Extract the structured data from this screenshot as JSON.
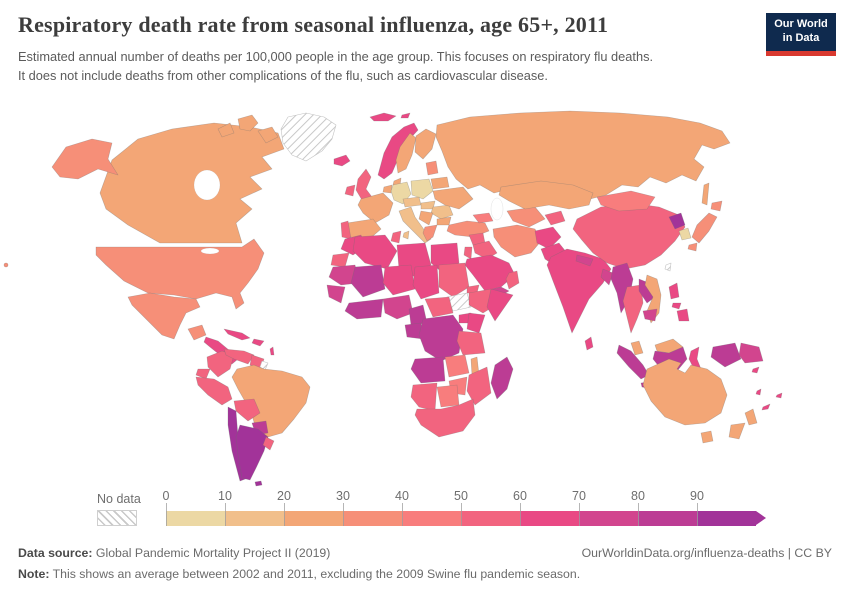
{
  "header": {
    "title": "Respiratory death rate from seasonal influenza, age 65+, 2011",
    "subtitle_line1": "Estimated annual number of deaths per 100,000 people in the age group. This focuses on respiratory flu deaths.",
    "subtitle_line2": "It does not include deaths from other complications of the flu, such as cardiovascular disease.",
    "logo": {
      "line1": "Our World",
      "line2": "in Data",
      "bg": "#0f2a4e",
      "stripe": "#d9392f"
    }
  },
  "legend": {
    "no_data_label": "No data",
    "ticks": [
      "0",
      "10",
      "20",
      "30",
      "40",
      "50",
      "60",
      "70",
      "80",
      "90"
    ]
  },
  "map": {
    "bin_colors": [
      "#ecd8a4",
      "#f1bf8b",
      "#f3a676",
      "#f68f78",
      "#f87d7d",
      "#f2647f",
      "#e94984",
      "#d2458e",
      "#bc3c94",
      "#a23399"
    ],
    "region_bins": {
      "greenland": "nodata",
      "canada": 2,
      "usa": 3,
      "mexico": 3,
      "central-america": 6,
      "cuba": 6,
      "hispaniola": 6,
      "lesser-antilles": 6,
      "colombia": 5,
      "venezuela": 5,
      "guyana": 5,
      "french-guiana": "nodata",
      "ecuador": 5,
      "peru": 5,
      "brazil": 2,
      "bolivia": 5,
      "paraguay": 8,
      "chile": 9,
      "argentina": 9,
      "uruguay": 5,
      "falklands": 9,
      "iceland": 6,
      "svalbard": 6,
      "norway": 6,
      "sweden": 2,
      "finland": 2,
      "denmark": 2,
      "baltics": 3,
      "uk": 5,
      "ireland": 5,
      "benelux": 2,
      "germany": 0,
      "poland": 0,
      "czechia-austria": 1,
      "france": 2,
      "spain": 2,
      "portugal": 5,
      "italy": 1,
      "hungary": 1,
      "romania": 1,
      "balkans": 2,
      "greece": 3,
      "bulgaria": 2,
      "ukraine": 2,
      "belarus": 2,
      "russia": 2,
      "turkey": 3,
      "caucasus": 4,
      "syria": 5,
      "iraq": 5,
      "levant": 5,
      "saudi-arabia": 6,
      "yemen": 7,
      "oman": 5,
      "iran": 3,
      "afghanistan": 6,
      "pakistan": 6,
      "turkmen-uzbek": 3,
      "kyrgyz-tajik": 5,
      "kazakhstan": 2,
      "morocco": 6,
      "western-sahara": 5,
      "algeria": 6,
      "tunisia": 5,
      "libya": 6,
      "egypt": 6,
      "mauritania": 7,
      "senegal-guinea": 7,
      "mali": 8,
      "niger": 6,
      "chad": 6,
      "sudan": 5,
      "south-sudan": "nodata",
      "eritrea": 5,
      "ethiopia": 5,
      "somalia": 6,
      "ghana-ivory": 8,
      "nigeria": 7,
      "cameroon": 8,
      "central-african-republic": 5,
      "congo-gabon": 8,
      "dr-congo": 8,
      "uganda": 6,
      "kenya": 6,
      "tanzania": 5,
      "angola": 8,
      "zambia": 4,
      "malawi": 2,
      "mozambique": 5,
      "zimbabwe": 4,
      "namibia": 5,
      "botswana": 4,
      "south-africa": 5,
      "madagascar": 8,
      "india": 6,
      "nepal": 7,
      "bangladesh": 7,
      "sri-lanka": 6,
      "china": 5,
      "mongolia": 4,
      "north-korea": 9,
      "south-korea": 0,
      "japan": 3,
      "taiwan": "nodata",
      "myanmar": 8,
      "thailand": 5,
      "laos": 8,
      "vietnam": 2,
      "cambodia": 7,
      "malaysia": 2,
      "indonesia": 8,
      "indonesia-sulawesi": 6,
      "indonesia-papua": 8,
      "papua-new-guinea": 7,
      "philippines": 6,
      "solomon-islands": 6,
      "vanuatu": 6,
      "fiji": 6,
      "new-caledonia": 6,
      "australia": 2,
      "new-zealand": 2
    }
  },
  "chart_data": {
    "type": "choropleth_map",
    "title": "Respiratory death rate from seasonal influenza, age 65+, 2011",
    "unit": "deaths per 100,000 people in the age group",
    "year": "2011",
    "legend_bins": [
      "0-10",
      "10-20",
      "20-30",
      "30-40",
      "40-50",
      "50-60",
      "60-70",
      "70-80",
      "80-90",
      "90+",
      "No data"
    ],
    "legend_colors": [
      "#ecd8a4",
      "#f1bf8b",
      "#f3a676",
      "#f68f78",
      "#f87d7d",
      "#f2647f",
      "#e94984",
      "#d2458e",
      "#bc3c94",
      "#a23399"
    ],
    "values": {
      "Canada": "20-30",
      "United States": "30-40",
      "Mexico": "30-40",
      "Greenland": "No data",
      "Central America": "60-70",
      "Cuba": "60-70",
      "Haiti/Dominican Rep.": "60-70",
      "Colombia": "50-60",
      "Venezuela": "50-60",
      "Guyana": "50-60",
      "Ecuador": "50-60",
      "Peru": "50-60",
      "Bolivia": "50-60",
      "Brazil": "20-30",
      "Paraguay": "80-90",
      "Uruguay": "50-60",
      "Argentina": "90+",
      "Chile": "90+",
      "Iceland": "60-70",
      "Norway": "60-70",
      "Sweden": "20-30",
      "Finland": "20-30",
      "Denmark": "20-30",
      "United Kingdom": "50-60",
      "Ireland": "50-60",
      "Germany": "0-10",
      "Poland": "0-10",
      "France": "20-30",
      "Spain": "20-30",
      "Portugal": "50-60",
      "Italy": "10-20",
      "Austria/Czechia": "10-20",
      "Hungary": "10-20",
      "Romania": "10-20",
      "Greece": "30-40",
      "Balkans": "20-30",
      "Ukraine": "20-30",
      "Belarus": "20-30",
      "Russia": "20-30",
      "Turkey": "30-40",
      "Syria": "50-60",
      "Iraq": "50-60",
      "Saudi Arabia": "60-70",
      "Yemen": "70-80",
      "Oman": "50-60",
      "Iran": "30-40",
      "Afghanistan": "60-70",
      "Pakistan": "60-70",
      "Kazakhstan": "20-30",
      "Uzbekistan/Turkmenistan": "30-40",
      "Kyrgyzstan/Tajikistan": "50-60",
      "Morocco": "60-70",
      "Algeria": "60-70",
      "Tunisia": "50-60",
      "Libya": "60-70",
      "Egypt": "60-70",
      "Mauritania": "70-80",
      "Senegal/Guinea": "70-80",
      "Mali": "80-90",
      "Niger": "60-70",
      "Chad": "60-70",
      "Sudan": "50-60",
      "South Sudan": "No data",
      "Ethiopia": "50-60",
      "Somalia": "60-70",
      "Nigeria": "70-80",
      "Ghana/Cote d'Ivoire": "80-90",
      "Cameroon": "80-90",
      "Central African Republic": "50-60",
      "DR Congo": "80-90",
      "Congo/Gabon": "80-90",
      "Uganda": "60-70",
      "Kenya": "60-70",
      "Tanzania": "50-60",
      "Angola": "80-90",
      "Zambia": "40-50",
      "Malawi": "20-30",
      "Mozambique": "50-60",
      "Zimbabwe": "40-50",
      "Namibia": "50-60",
      "Botswana": "40-50",
      "South Africa": "50-60",
      "Madagascar": "80-90",
      "India": "60-70",
      "Nepal": "70-80",
      "Bangladesh": "70-80",
      "Sri Lanka": "60-70",
      "China": "50-60",
      "Mongolia": "40-50",
      "North Korea": "90+",
      "South Korea": "0-10",
      "Japan": "30-40",
      "Taiwan": "No data",
      "Myanmar": "80-90",
      "Thailand": "50-60",
      "Laos": "80-90",
      "Vietnam": "20-30",
      "Cambodia": "70-80",
      "Malaysia": "20-30",
      "Indonesia": "80-90",
      "Philippines": "60-70",
      "Papua New Guinea": "70-80",
      "Australia": "20-30",
      "New Zealand": "20-30"
    }
  },
  "footer": {
    "source_label": "Data source:",
    "source_value": " Global Pandemic Mortality Project II (2019)",
    "link": "OurWorldinData.org/influenza-deaths | CC BY",
    "note_label": "Note:",
    "note_value": " This shows an average between 2002 and 2011, excluding the 2009 Swine flu pandemic season."
  }
}
